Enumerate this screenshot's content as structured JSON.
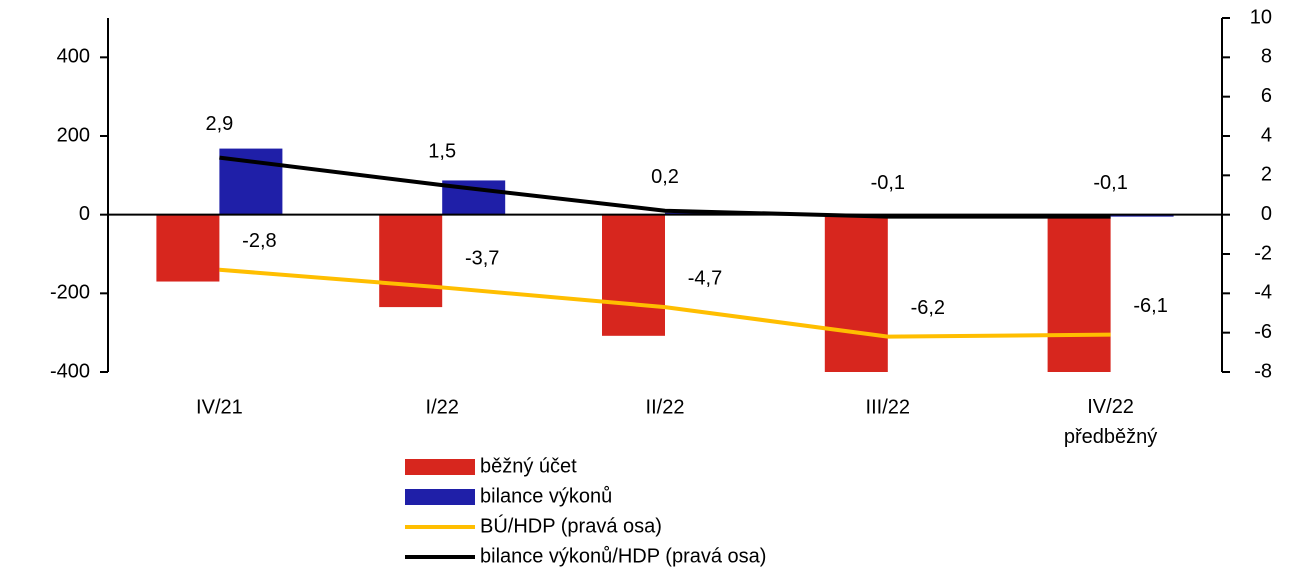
{
  "chart_data": {
    "type": "bar",
    "categories": [
      "IV/21",
      "I/22",
      "II/22",
      "III/22",
      "IV/22\npředběžný"
    ],
    "series": [
      {
        "name": "běžný účet",
        "type": "bar",
        "color": "#d7261e",
        "values": [
          -170,
          -235,
          -308,
          -400,
          -400
        ]
      },
      {
        "name": "bilance výkonů",
        "type": "bar",
        "color": "#1f1fa8",
        "values": [
          168,
          87,
          5,
          -3,
          -5
        ]
      },
      {
        "name": "BÚ/HDP (pravá osa)",
        "type": "line",
        "axis": "y2",
        "color": "#ffbe00",
        "values": [
          -2.8,
          -3.7,
          -4.7,
          -6.2,
          -6.1
        ],
        "value_labels": [
          "-2,8",
          "-3,7",
          "-4,7",
          "-6,2",
          "-6,1"
        ]
      },
      {
        "name": "bilance výkonů/HDP (pravá osa)",
        "type": "line",
        "axis": "y2",
        "color": "#000000",
        "values": [
          2.9,
          1.5,
          0.2,
          -0.1,
          -0.1
        ],
        "value_labels": [
          "2,9",
          "1,5",
          "0,2",
          "-0,1",
          "-0,1"
        ]
      }
    ],
    "ylim": [
      -400,
      500
    ],
    "yticks": [
      -400,
      -200,
      0,
      200,
      400
    ],
    "y2lim": [
      -8,
      10
    ],
    "y2ticks": [
      -8,
      -6,
      -4,
      -2,
      0,
      2,
      4,
      6,
      8,
      10
    ]
  }
}
